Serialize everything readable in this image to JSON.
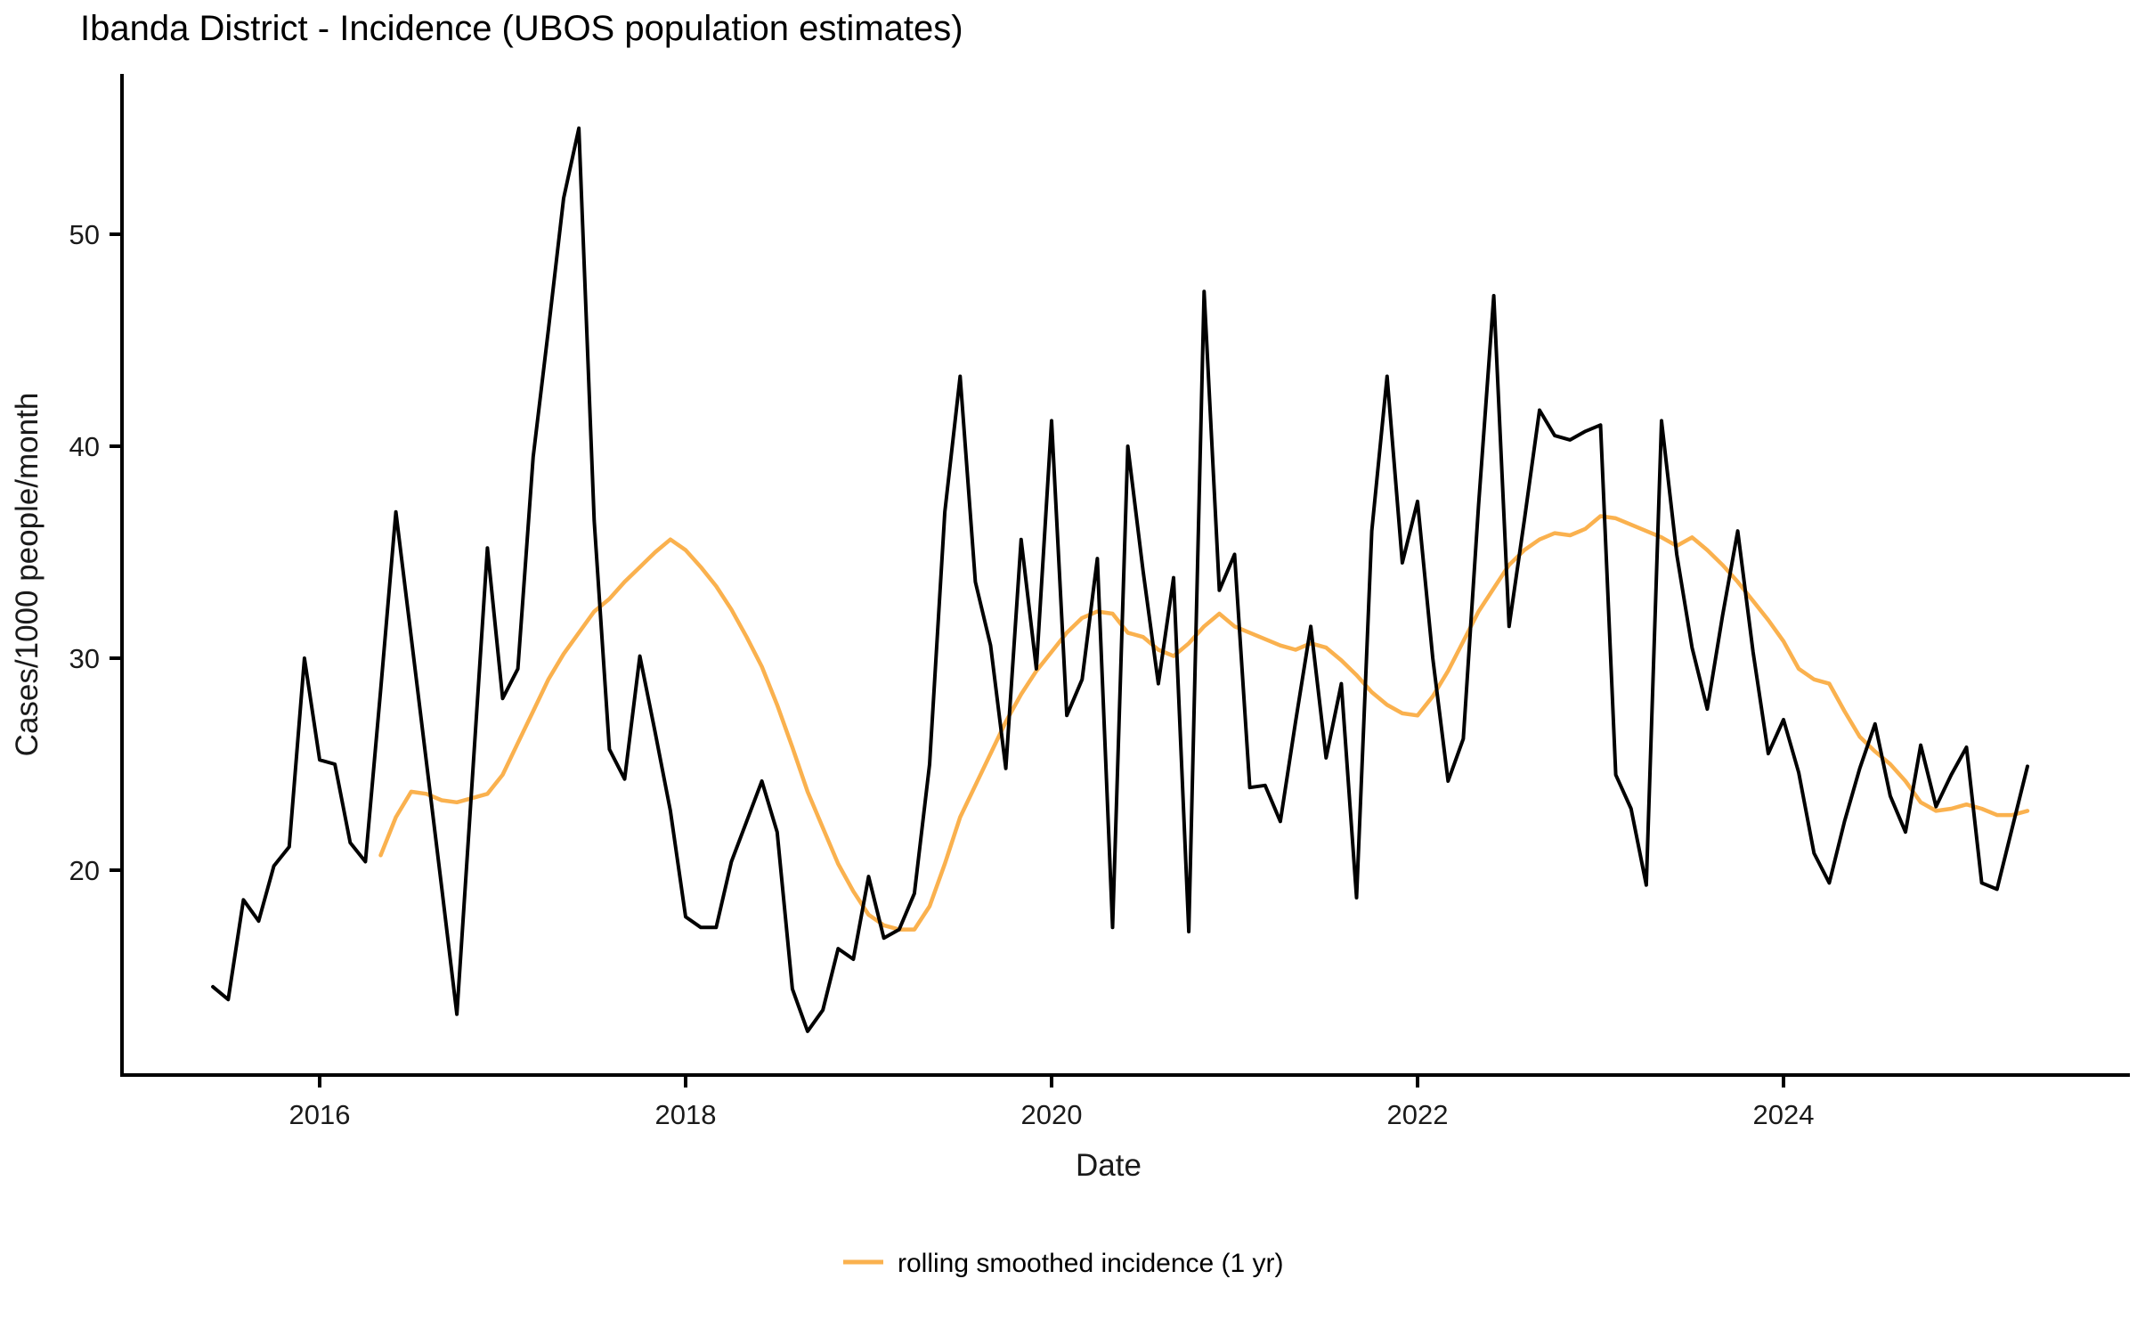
{
  "title": "Ibanda District - Incidence (UBOS population estimates)",
  "axes": {
    "x_title": "Date",
    "y_title": "Cases/1000 people/month",
    "x_ticks": [
      2016,
      2018,
      2020,
      2022,
      2024
    ],
    "y_ticks": [
      20,
      30,
      40,
      50
    ]
  },
  "legend": {
    "label": "rolling smoothed incidence (1 yr)",
    "swatch_color": "#FAB14E"
  },
  "colors": {
    "raw_series": "#000000",
    "smoothed_series": "#FAB14E",
    "axis_line": "#000000",
    "text": "#1a1a1a"
  },
  "chart_data": {
    "type": "line",
    "title": "Ibanda District - Incidence (UBOS population estimates)",
    "xlabel": "Date",
    "ylabel": "Cases/1000 people/month",
    "grid": false,
    "legend_position": "bottom",
    "x_axis": {
      "start_month": "2015-06",
      "end_month": "2025-05",
      "tick_years": [
        2016,
        2018,
        2020,
        2022,
        2024
      ]
    },
    "ylim_ticks": [
      20,
      50
    ],
    "series": [
      {
        "name": "monthly incidence",
        "color": "#000000",
        "start_month": "2015-06",
        "values": [
          14.5,
          13.9,
          18.6,
          17.6,
          20.2,
          21.1,
          30.0,
          25.2,
          25.0,
          21.3,
          20.4,
          28.5,
          36.9,
          31.0,
          25.1,
          19.2,
          13.2,
          24.2,
          35.2,
          28.1,
          29.5,
          39.5,
          45.5,
          51.7,
          55.0,
          36.5,
          25.7,
          24.3,
          30.1,
          26.5,
          22.8,
          17.8,
          17.3,
          17.3,
          20.4,
          22.3,
          24.2,
          21.8,
          14.4,
          12.4,
          13.4,
          16.3,
          15.8,
          19.7,
          16.8,
          17.2,
          18.9,
          25.0,
          36.9,
          43.3,
          33.6,
          30.6,
          24.8,
          35.6,
          29.5,
          41.2,
          27.3,
          29.0,
          34.7,
          17.3,
          40.0,
          34.1,
          28.8,
          33.8,
          17.1,
          47.3,
          33.2,
          34.9,
          23.9,
          24.0,
          22.3,
          27.0,
          31.5,
          25.3,
          28.8,
          18.7,
          36.0,
          43.3,
          34.5,
          37.4,
          30.0,
          24.2,
          26.2,
          37.2,
          47.1,
          31.5,
          36.5,
          41.7,
          40.5,
          40.3,
          40.7,
          41.0,
          24.5,
          22.9,
          19.3,
          41.2,
          34.9,
          30.5,
          27.6,
          32.0,
          36.0,
          30.3,
          25.5,
          27.1,
          24.6,
          20.8,
          19.4,
          22.3,
          24.8,
          26.9,
          23.5,
          21.8,
          25.9,
          23.0,
          24.5,
          25.8,
          19.4,
          19.1,
          22.0,
          24.9
        ]
      },
      {
        "name": "rolling smoothed incidence (1 yr)",
        "color": "#FAB14E",
        "start_month": "2016-05",
        "values": [
          20.7,
          22.5,
          23.7,
          23.6,
          23.3,
          23.2,
          23.4,
          23.6,
          24.5,
          26.0,
          27.5,
          29.0,
          30.2,
          31.2,
          32.2,
          32.8,
          33.6,
          34.3,
          35.0,
          35.6,
          35.1,
          34.3,
          33.4,
          32.3,
          31.0,
          29.6,
          27.8,
          25.8,
          23.7,
          22.0,
          20.3,
          19.0,
          17.9,
          17.4,
          17.2,
          17.2,
          18.3,
          20.3,
          22.5,
          24.0,
          25.5,
          27.0,
          28.3,
          29.4,
          30.3,
          31.2,
          31.9,
          32.2,
          32.1,
          31.2,
          31.0,
          30.4,
          30.1,
          30.7,
          31.5,
          32.1,
          31.5,
          31.2,
          30.9,
          30.6,
          30.4,
          30.7,
          30.5,
          29.9,
          29.2,
          28.4,
          27.8,
          27.4,
          27.3,
          28.2,
          29.4,
          30.8,
          32.2,
          33.3,
          34.4,
          35.1,
          35.6,
          35.9,
          35.8,
          36.1,
          36.7,
          36.6,
          36.3,
          36.0,
          35.7,
          35.3,
          35.7,
          35.1,
          34.4,
          33.6,
          32.7,
          31.8,
          30.8,
          29.5,
          29.0,
          28.8,
          27.5,
          26.3,
          25.6,
          25.0,
          24.2,
          23.2,
          22.8,
          22.9,
          23.1,
          22.9,
          22.6,
          22.6,
          22.8
        ]
      }
    ]
  },
  "layout_note": "values are cases per 1000 people per month"
}
